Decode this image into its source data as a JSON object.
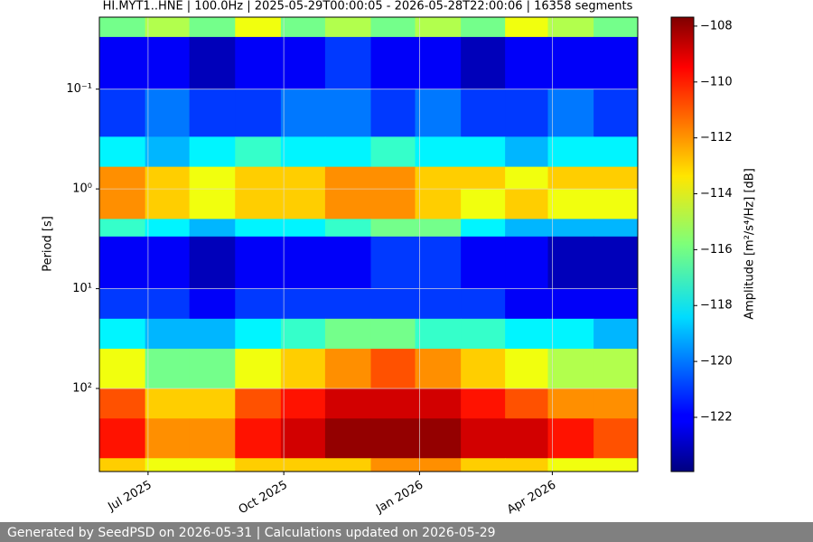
{
  "chart_data": {
    "type": "spectrogram",
    "title": "HI.MYT1..HNE | 100.0Hz | 2025-05-29T00:00:05 - 2026-05-28T22:00:06 | 16358 segments",
    "y_label": "Period [s]",
    "colorbar_label": "Amplitude [m²/s⁴/Hz] [dB]",
    "footer": "Generated by SeedPSD on 2026-05-31 | Calculations updated on 2026-05-29",
    "colormap": "jet",
    "y_log": true,
    "y_inverted": true,
    "grid": true,
    "xlim": [
      "2025-05-29T00:00:05",
      "2026-05-28T22:00:06"
    ],
    "xticks": [
      {
        "value": "2025-07-01",
        "label": "Jul 2025"
      },
      {
        "value": "2025-10-01",
        "label": "Oct 2025"
      },
      {
        "value": "2026-01-01",
        "label": "Jan 2026"
      },
      {
        "value": "2026-04-01",
        "label": "Apr 2026"
      }
    ],
    "ylim": [
      0.019,
      680
    ],
    "yticks": [
      {
        "value": 0.1,
        "label": "10⁻¹"
      },
      {
        "value": 1,
        "label": "10⁰"
      },
      {
        "value": 10,
        "label": "10¹"
      },
      {
        "value": 100,
        "label": "10²"
      }
    ],
    "clim": [
      -123.94,
      -107.68
    ],
    "cticks": [
      {
        "value": -108,
        "label": "−108"
      },
      {
        "value": -110,
        "label": "−110"
      },
      {
        "value": -112,
        "label": "−112"
      },
      {
        "value": -114,
        "label": "−114"
      },
      {
        "value": -116,
        "label": "−116"
      },
      {
        "value": -118,
        "label": "−118"
      },
      {
        "value": -120,
        "label": "−120"
      },
      {
        "value": -122,
        "label": "−122"
      }
    ],
    "time_bins": [
      "2025-05-29T00:00:05",
      "2025-06-29",
      "2025-07-29",
      "2025-08-29",
      "2025-09-29",
      "2025-10-29",
      "2025-11-29",
      "2025-12-29",
      "2026-01-29",
      "2026-02-28",
      "2026-03-29",
      "2026-04-29",
      "2026-05-28T22:00:06"
    ],
    "period_bins": [
      0.019,
      0.03,
      0.1,
      0.3,
      0.6,
      1,
      2,
      3,
      10,
      20,
      40,
      100,
      200,
      500,
      680
    ],
    "values": [
      [
        -116,
        -115,
        -116,
        -114,
        -116,
        -115,
        -116,
        -115,
        -116,
        -114,
        -115,
        -116
      ],
      [
        -122,
        -122,
        -123,
        -122,
        -122,
        -121,
        -122,
        -122,
        -123,
        -122,
        -122,
        -122
      ],
      [
        -121,
        -120,
        -121,
        -121,
        -120,
        -120,
        -121,
        -120,
        -121,
        -121,
        -120,
        -121
      ],
      [
        -118,
        -119,
        -118,
        -117,
        -118,
        -118,
        -117,
        -118,
        -118,
        -119,
        -118,
        -118
      ],
      [
        -112,
        -113,
        -114,
        -113,
        -113,
        -112,
        -112,
        -113,
        -113,
        -114,
        -113,
        -113
      ],
      [
        -112,
        -113,
        -114,
        -113,
        -113,
        -112,
        -112,
        -113,
        -114,
        -113,
        -114,
        -114
      ],
      [
        -117,
        -118,
        -119,
        -118,
        -118,
        -117,
        -116,
        -116,
        -118,
        -119,
        -119,
        -119
      ],
      [
        -122,
        -122,
        -123,
        -122,
        -122,
        -122,
        -121,
        -121,
        -122,
        -122,
        -123,
        -123
      ],
      [
        -121,
        -121,
        -122,
        -121,
        -121,
        -121,
        -121,
        -121,
        -121,
        -122,
        -122,
        -122
      ],
      [
        -118,
        -119,
        -119,
        -118,
        -117,
        -116,
        -116,
        -117,
        -117,
        -118,
        -118,
        -119
      ],
      [
        -114,
        -116,
        -116,
        -114,
        -113,
        -112,
        -111,
        -112,
        -113,
        -114,
        -115,
        -115
      ],
      [
        -111,
        -113,
        -113,
        -111,
        -110,
        -109,
        -109,
        -109,
        -110,
        -111,
        -112,
        -112
      ],
      [
        -110,
        -112,
        -112,
        -110,
        -109,
        -108,
        -108,
        -108,
        -109,
        -109,
        -110,
        -111
      ],
      [
        -113,
        -114,
        -114,
        -113,
        -113,
        -113,
        -112,
        -112,
        -113,
        -113,
        -114,
        -114
      ]
    ]
  }
}
